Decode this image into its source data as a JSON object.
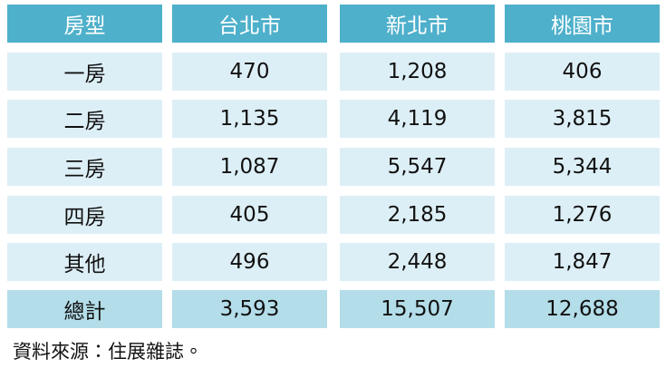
{
  "table": {
    "header": [
      "房型",
      "台北市",
      "新北市",
      "桃園市"
    ],
    "rows": [
      [
        "一房",
        "470",
        "1,208",
        "406"
      ],
      [
        "二房",
        "1,135",
        "4,119",
        "3,815"
      ],
      [
        "三房",
        "1,087",
        "5,547",
        "5,344"
      ],
      [
        "四房",
        "405",
        "2,185",
        "1,276"
      ],
      [
        "其他",
        "496",
        "2,448",
        "1,847"
      ],
      [
        "總計",
        "3,593",
        "15,507",
        "12,688"
      ]
    ]
  },
  "source": "資料來源：住展雜誌。"
}
